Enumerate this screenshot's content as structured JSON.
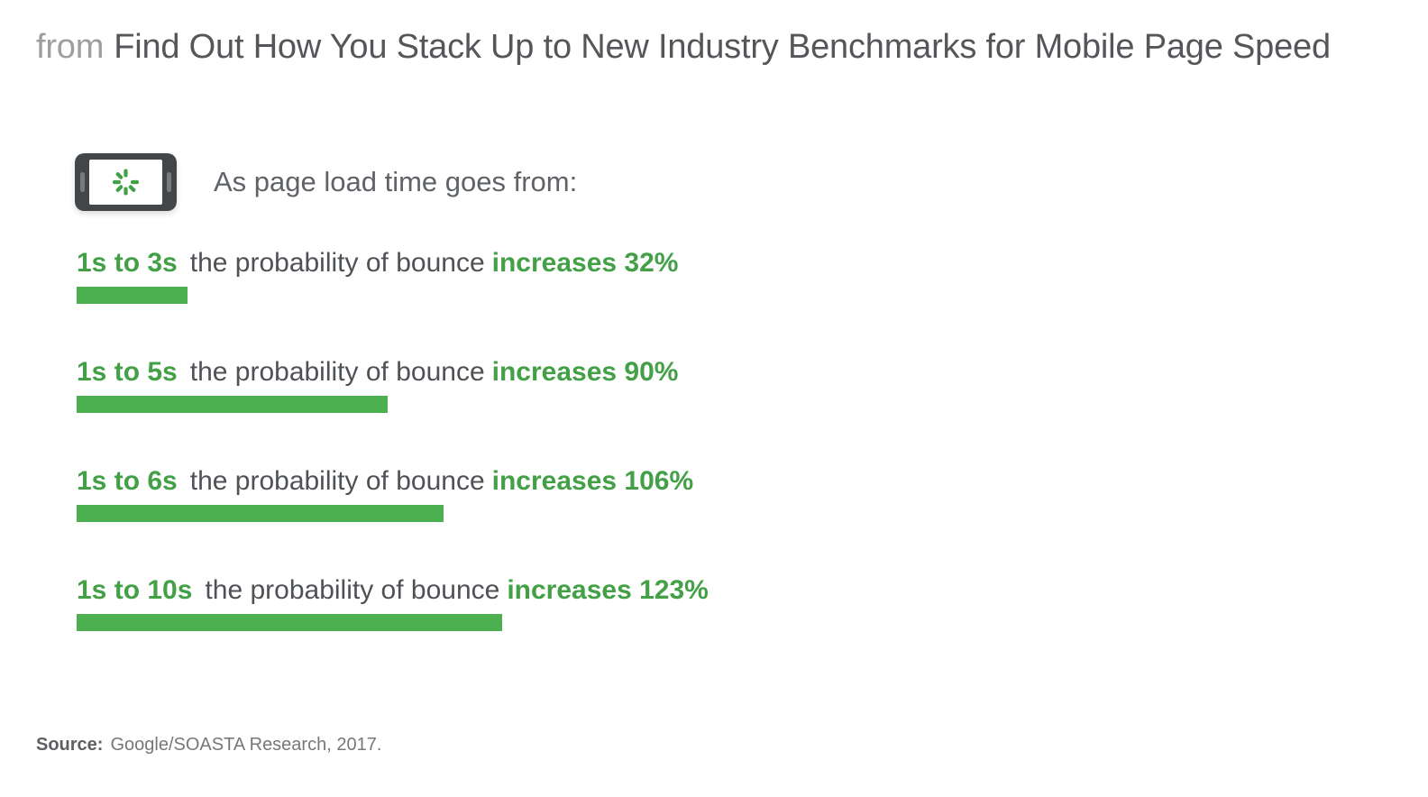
{
  "header": {
    "prefix": "from",
    "title": "Find Out How You Stack Up to New Industry Benchmarks for Mobile Page Speed"
  },
  "intro": {
    "icon": "phone-loading-icon",
    "text": "As page load time goes from:"
  },
  "chart_data": {
    "type": "bar",
    "orientation": "horizontal",
    "title": "As page load time goes from:",
    "categories": [
      "1s to 3s",
      "1s to 5s",
      "1s to 6s",
      "1s to 10s"
    ],
    "values": [
      32,
      90,
      106,
      123
    ],
    "value_suffix": "%",
    "xlim": [
      0,
      123
    ],
    "grid": false,
    "legend": false,
    "bar_color": "#4caf50",
    "accent_text_color": "#43a047",
    "body_text_color": "#4e5155",
    "rows": [
      {
        "range": "1s to 3s",
        "connector": "the probability of bounce",
        "emphasis": "increases 32%"
      },
      {
        "range": "1s to 5s",
        "connector": "the probability of bounce",
        "emphasis": "increases 90%"
      },
      {
        "range": "1s to 6s",
        "connector": "the probability of bounce",
        "emphasis": "increases 106%"
      },
      {
        "range": "1s to 10s",
        "connector": "the probability of bounce",
        "emphasis": "increases 123%"
      }
    ]
  },
  "source": {
    "label": "Source:",
    "text": "Google/SOASTA Research, 2017."
  },
  "colors": {
    "background": "#ffffff",
    "title_prefix": "#9e9e9e",
    "title_main": "#54565a",
    "phone_body": "#424649",
    "phone_screen": "#ffffff",
    "phone_buttons": "#777b7e",
    "spinner_green": "#43a047"
  }
}
